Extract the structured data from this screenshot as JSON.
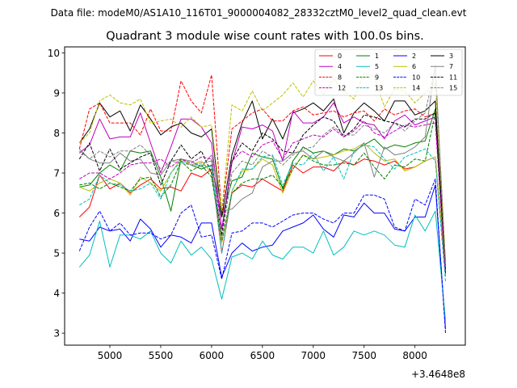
{
  "chart_data": {
    "type": "line",
    "suptitle": "Data file: modeM0/AS1A10_116T01_9000004082_28332cztM0_level2_quad_clean.evt",
    "title": "Quadrant 3 module wise count rates with 100.0s bins.",
    "xlabel": "",
    "ylabel": "",
    "x_offset_label": "+3.4648e8",
    "xlim": [
      4555,
      8495
    ],
    "ylim": [
      2.7,
      10.15
    ],
    "xticks": [
      5000,
      5500,
      6000,
      6500,
      7000,
      7500,
      8000
    ],
    "yticks": [
      3,
      4,
      5,
      6,
      7,
      8,
      9,
      10
    ],
    "legend_position": "top-right",
    "x": [
      4700,
      4800,
      4900,
      5000,
      5100,
      5200,
      5300,
      5400,
      5500,
      5600,
      5700,
      5800,
      5900,
      6000,
      6100,
      6200,
      6300,
      6400,
      6500,
      6600,
      6700,
      6800,
      6900,
      7000,
      7100,
      7200,
      7300,
      7400,
      7500,
      7600,
      7700,
      7800,
      7900,
      8000,
      8100,
      8200,
      8300
    ],
    "series": [
      {
        "name": "0",
        "color": "#ff0000",
        "dash": false,
        "values": [
          5.9,
          6.15,
          6.95,
          6.6,
          6.75,
          6.5,
          6.7,
          6.85,
          6.6,
          6.65,
          6.55,
          7.0,
          6.9,
          7.1,
          5.0,
          6.5,
          6.7,
          6.65,
          6.85,
          6.7,
          6.55,
          7.2,
          7.0,
          7.15,
          7.15,
          7.05,
          7.3,
          7.2,
          7.35,
          7.3,
          7.2,
          7.3,
          7.1,
          7.15,
          7.3,
          7.4,
          4.5
        ]
      },
      {
        "name": "1",
        "color": "#008000",
        "dash": false,
        "values": [
          6.65,
          6.7,
          7.0,
          7.2,
          7.05,
          7.55,
          7.5,
          7.55,
          6.9,
          6.05,
          7.35,
          7.2,
          7.1,
          7.2,
          5.9,
          6.8,
          6.9,
          7.5,
          7.4,
          7.35,
          6.6,
          7.3,
          7.65,
          7.5,
          7.55,
          7.45,
          7.6,
          7.55,
          7.7,
          7.85,
          7.6,
          7.7,
          7.65,
          7.75,
          7.8,
          8.6,
          4.8
        ]
      },
      {
        "name": "2",
        "color": "#0000ff",
        "dash": false,
        "values": [
          5.35,
          5.3,
          5.65,
          5.55,
          5.6,
          5.3,
          5.85,
          5.6,
          5.15,
          5.45,
          5.4,
          5.25,
          5.75,
          5.75,
          4.4,
          5.0,
          5.25,
          5.05,
          5.15,
          5.2,
          5.55,
          5.65,
          5.75,
          5.95,
          5.6,
          5.4,
          5.95,
          5.9,
          6.25,
          6.0,
          6.0,
          5.6,
          5.55,
          5.9,
          5.9,
          6.7,
          3.1
        ]
      },
      {
        "name": "3",
        "color": "#000000",
        "dash": false,
        "values": [
          7.75,
          8.1,
          8.75,
          8.4,
          8.55,
          8.05,
          8.7,
          8.35,
          7.95,
          8.15,
          8.25,
          8.0,
          7.9,
          8.1,
          5.9,
          7.45,
          8.25,
          8.8,
          7.85,
          8.35,
          7.85,
          8.5,
          8.6,
          8.75,
          8.55,
          8.85,
          8.0,
          8.5,
          8.75,
          8.55,
          8.3,
          8.8,
          8.8,
          8.45,
          8.55,
          8.8,
          4.5
        ]
      },
      {
        "name": "4",
        "color": "#bf00bf",
        "dash": false,
        "values": [
          7.5,
          7.7,
          8.35,
          7.85,
          7.9,
          7.9,
          8.5,
          7.75,
          7.0,
          7.65,
          8.35,
          8.35,
          8.15,
          7.75,
          5.6,
          7.25,
          8.15,
          8.1,
          8.2,
          8.05,
          7.3,
          8.55,
          8.25,
          8.25,
          8.4,
          8.75,
          8.25,
          8.4,
          8.25,
          8.2,
          7.85,
          8.3,
          8.45,
          8.2,
          8.3,
          8.4,
          4.6
        ]
      },
      {
        "name": "5",
        "color": "#00bfbf",
        "dash": false,
        "values": [
          4.65,
          4.95,
          5.8,
          4.65,
          5.45,
          5.45,
          5.35,
          5.55,
          5.0,
          4.75,
          5.3,
          4.95,
          5.15,
          4.85,
          3.85,
          4.9,
          5.0,
          4.85,
          5.3,
          4.95,
          4.85,
          5.15,
          5.15,
          5.0,
          5.55,
          4.95,
          5.15,
          5.55,
          5.45,
          5.55,
          5.45,
          5.2,
          5.15,
          5.95,
          5.55,
          6.05,
          3.3
        ]
      },
      {
        "name": "6",
        "color": "#bfbf00",
        "dash": false,
        "values": [
          6.65,
          6.55,
          6.75,
          6.85,
          6.75,
          6.45,
          6.9,
          6.75,
          6.55,
          7.0,
          7.35,
          7.2,
          7.3,
          7.0,
          5.25,
          6.55,
          7.05,
          7.1,
          7.35,
          7.2,
          6.5,
          7.1,
          7.45,
          7.35,
          7.4,
          7.45,
          7.55,
          7.6,
          7.75,
          7.5,
          7.3,
          7.35,
          7.05,
          7.15,
          7.3,
          7.4,
          4.6
        ]
      },
      {
        "name": "7",
        "color": "#808080",
        "dash": false,
        "values": [
          7.6,
          7.35,
          7.25,
          7.25,
          7.5,
          7.3,
          7.35,
          7.0,
          6.95,
          7.3,
          7.35,
          7.3,
          7.15,
          7.45,
          6.05,
          6.1,
          6.35,
          6.5,
          7.15,
          7.3,
          7.3,
          7.5,
          7.55,
          7.35,
          7.55,
          7.4,
          7.3,
          7.5,
          7.75,
          6.9,
          7.65,
          7.45,
          7.5,
          7.65,
          7.9,
          9.7,
          4.7
        ]
      },
      {
        "name": "8",
        "color": "#ff0000",
        "dash": true,
        "values": [
          7.6,
          8.6,
          8.75,
          8.25,
          8.25,
          8.25,
          7.95,
          8.6,
          8.05,
          8.05,
          9.3,
          8.8,
          8.5,
          9.45,
          6.0,
          8.1,
          8.3,
          8.5,
          8.6,
          8.3,
          8.3,
          8.55,
          8.65,
          8.45,
          8.5,
          8.55,
          8.4,
          8.5,
          8.55,
          8.3,
          8.6,
          8.45,
          8.55,
          8.6,
          8.4,
          8.5,
          4.5
        ]
      },
      {
        "name": "9",
        "color": "#008000",
        "dash": true,
        "values": [
          6.7,
          6.75,
          6.6,
          6.75,
          6.65,
          6.55,
          6.85,
          6.9,
          6.4,
          6.7,
          7.3,
          7.05,
          7.2,
          6.9,
          5.3,
          6.5,
          6.75,
          6.85,
          6.85,
          6.95,
          6.65,
          7.1,
          7.45,
          7.3,
          7.2,
          7.2,
          7.25,
          7.2,
          7.5,
          7.15,
          6.85,
          7.2,
          7.15,
          7.35,
          7.3,
          8.5,
          4.5
        ]
      },
      {
        "name": "10",
        "color": "#0000ff",
        "dash": true,
        "values": [
          5.05,
          5.65,
          6.05,
          5.55,
          5.75,
          5.45,
          5.5,
          5.5,
          5.35,
          5.45,
          6.0,
          6.2,
          5.4,
          5.45,
          4.35,
          5.5,
          5.55,
          5.75,
          5.75,
          5.65,
          5.8,
          5.95,
          6.0,
          6.0,
          5.85,
          5.75,
          6.0,
          6.0,
          6.45,
          6.45,
          6.35,
          5.65,
          5.55,
          6.35,
          6.2,
          6.85,
          3.0
        ]
      },
      {
        "name": "11",
        "color": "#000000",
        "dash": true,
        "values": [
          7.35,
          7.75,
          7.05,
          7.6,
          7.1,
          7.25,
          7.4,
          7.5,
          6.7,
          7.3,
          7.7,
          7.35,
          7.55,
          7.0,
          5.45,
          7.3,
          7.75,
          7.55,
          8.0,
          7.85,
          7.55,
          7.5,
          7.95,
          8.2,
          8.4,
          8.3,
          7.9,
          8.1,
          8.45,
          8.4,
          8.3,
          8.25,
          8.15,
          8.35,
          8.35,
          8.5,
          4.6
        ]
      },
      {
        "name": "12",
        "color": "#bf00bf",
        "dash": true,
        "values": [
          6.85,
          7.0,
          7.0,
          6.85,
          7.0,
          7.2,
          7.25,
          7.25,
          7.35,
          7.15,
          7.35,
          7.25,
          7.4,
          7.35,
          5.6,
          7.3,
          7.55,
          7.4,
          7.7,
          7.8,
          7.35,
          7.75,
          7.85,
          7.95,
          7.9,
          8.1,
          7.9,
          8.05,
          8.3,
          8.0,
          7.9,
          8.05,
          8.2,
          8.15,
          8.2,
          8.25,
          4.4
        ]
      },
      {
        "name": "13",
        "color": "#00bfbf",
        "dash": true,
        "values": [
          6.2,
          6.35,
          6.95,
          6.75,
          6.7,
          6.55,
          6.6,
          6.75,
          6.35,
          7.0,
          7.3,
          7.2,
          7.2,
          7.15,
          5.0,
          6.55,
          7.1,
          7.1,
          7.4,
          7.45,
          6.7,
          7.25,
          7.2,
          7.5,
          7.05,
          7.4,
          6.85,
          7.55,
          7.7,
          7.65,
          7.35,
          7.1,
          7.4,
          7.5,
          7.6,
          7.3,
          4.3
        ]
      },
      {
        "name": "14",
        "color": "#bfbf00",
        "dash": true,
        "values": [
          7.75,
          8.0,
          8.8,
          8.95,
          8.75,
          8.7,
          8.85,
          8.25,
          8.3,
          8.35,
          8.15,
          8.4,
          8.15,
          8.2,
          6.05,
          8.7,
          8.55,
          9.05,
          8.55,
          8.75,
          8.95,
          9.25,
          8.9,
          9.3,
          8.95,
          9.35,
          9.05,
          8.85,
          9.5,
          9.4,
          8.65,
          9.1,
          9.05,
          8.75,
          9.0,
          9.25,
          4.8
        ]
      },
      {
        "name": "15",
        "color": "#808080",
        "dash": true,
        "values": [
          7.55,
          7.35,
          7.55,
          7.4,
          7.55,
          7.55,
          7.7,
          7.45,
          7.1,
          7.3,
          7.25,
          7.2,
          7.25,
          7.3,
          5.35,
          7.0,
          7.3,
          7.2,
          7.55,
          7.4,
          7.2,
          7.45,
          7.6,
          7.65,
          7.95,
          8.15,
          7.95,
          7.95,
          8.2,
          8.1,
          8.0,
          8.25,
          8.05,
          8.3,
          8.5,
          9.65,
          4.7
        ]
      }
    ]
  }
}
